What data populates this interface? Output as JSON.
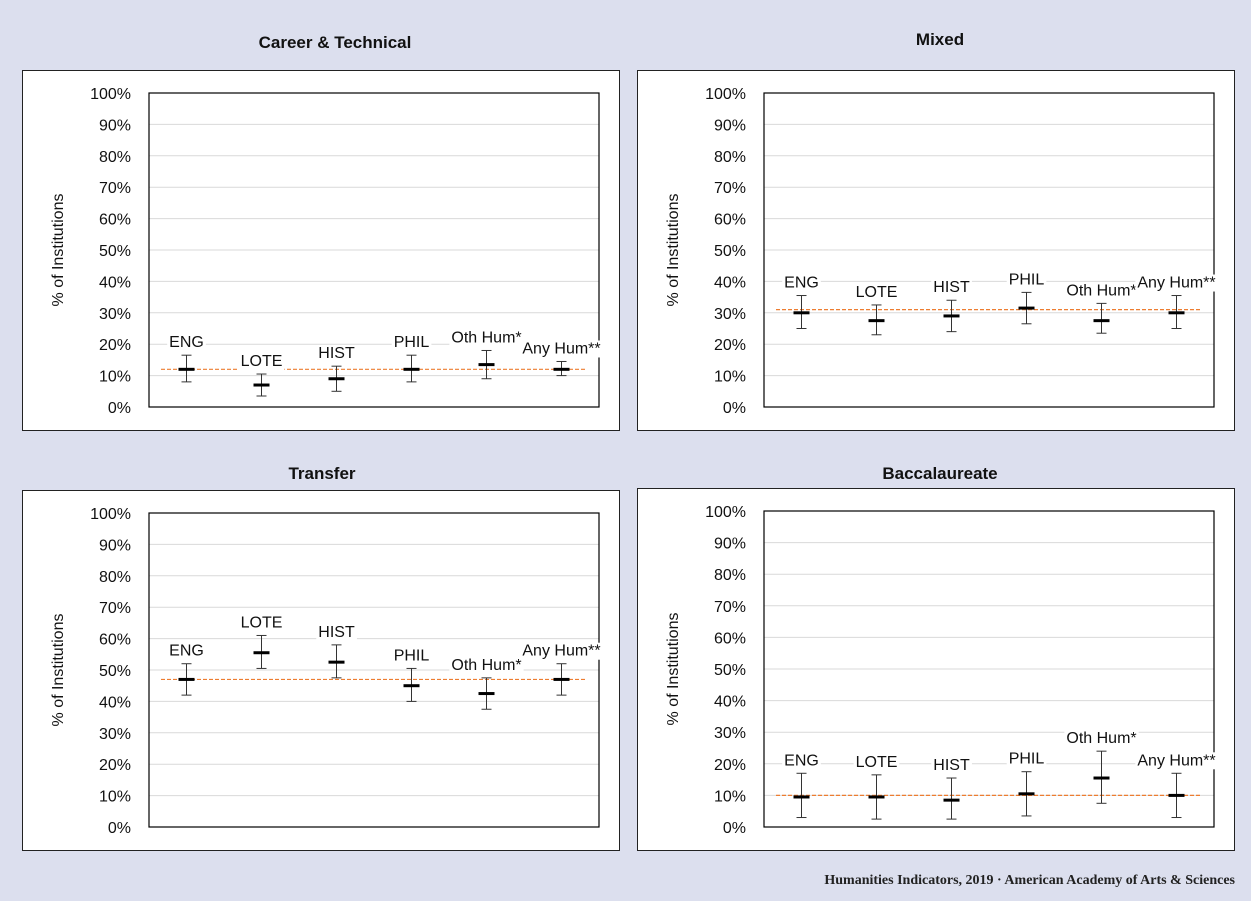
{
  "source": "Humanities  Indicators, 2019 · American Academy of Arts & Sciences",
  "chart_data": [
    {
      "type": "scatter",
      "title": "Career & Technical",
      "ylabel": "% of Institutions",
      "ylim": [
        0,
        100
      ],
      "yticks": [
        "0%",
        "10%",
        "20%",
        "30%",
        "40%",
        "50%",
        "60%",
        "70%",
        "80%",
        "90%",
        "100%"
      ],
      "categories": [
        "ENG",
        "LOTE",
        "HIST",
        "PHIL",
        "Oth  Hum*",
        "Any Hum**"
      ],
      "values": [
        12,
        7,
        9,
        12,
        13.5,
        12
      ],
      "err_low": [
        8,
        3.5,
        5,
        8,
        9,
        10
      ],
      "err_high": [
        16.5,
        10.5,
        13,
        16.5,
        18,
        14.5
      ],
      "reference": 12,
      "colors": {
        "reference": "#ed7d31",
        "marker": "#000000"
      }
    },
    {
      "type": "scatter",
      "title": "Mixed",
      "ylabel": "% of Institutions",
      "ylim": [
        0,
        100
      ],
      "yticks": [
        "0%",
        "10%",
        "20%",
        "30%",
        "40%",
        "50%",
        "60%",
        "70%",
        "80%",
        "90%",
        "100%"
      ],
      "categories": [
        "ENG",
        "LOTE",
        "HIST",
        "PHIL",
        "Oth  Hum*",
        "Any Hum**"
      ],
      "values": [
        30,
        27.5,
        29,
        31.5,
        27.5,
        30
      ],
      "err_low": [
        25,
        23,
        24,
        26.5,
        23.5,
        25
      ],
      "err_high": [
        35.5,
        32.5,
        34,
        36.5,
        33,
        35.5
      ],
      "reference": 31,
      "colors": {
        "reference": "#ed7d31",
        "marker": "#000000"
      }
    },
    {
      "type": "scatter",
      "title": "Transfer",
      "ylabel": "% of Institutions",
      "ylim": [
        0,
        100
      ],
      "yticks": [
        "0%",
        "10%",
        "20%",
        "30%",
        "40%",
        "50%",
        "60%",
        "70%",
        "80%",
        "90%",
        "100%"
      ],
      "categories": [
        "ENG",
        "LOTE",
        "HIST",
        "PHIL",
        "Oth  Hum*",
        "Any Hum**"
      ],
      "values": [
        47,
        55.5,
        52.5,
        45,
        42.5,
        47
      ],
      "err_low": [
        42,
        50.5,
        47.5,
        40,
        37.5,
        42
      ],
      "err_high": [
        52,
        61,
        58,
        50.5,
        47.5,
        52
      ],
      "reference": 47,
      "colors": {
        "reference": "#ed7d31",
        "marker": "#000000"
      }
    },
    {
      "type": "scatter",
      "title": "Baccalaureate",
      "ylabel": "% of Institutions",
      "ylim": [
        0,
        100
      ],
      "yticks": [
        "0%",
        "10%",
        "20%",
        "30%",
        "40%",
        "50%",
        "60%",
        "70%",
        "80%",
        "90%",
        "100%"
      ],
      "categories": [
        "ENG",
        "LOTE",
        "HIST",
        "PHIL",
        "Oth  Hum*",
        "Any Hum**"
      ],
      "values": [
        9.5,
        9.5,
        8.5,
        10.5,
        15.5,
        10
      ],
      "err_low": [
        3,
        2.5,
        2.5,
        3.5,
        7.5,
        3
      ],
      "err_high": [
        17,
        16.5,
        15.5,
        17.5,
        24,
        17
      ],
      "reference": 10,
      "colors": {
        "reference": "#ed7d31",
        "marker": "#000000"
      }
    }
  ]
}
